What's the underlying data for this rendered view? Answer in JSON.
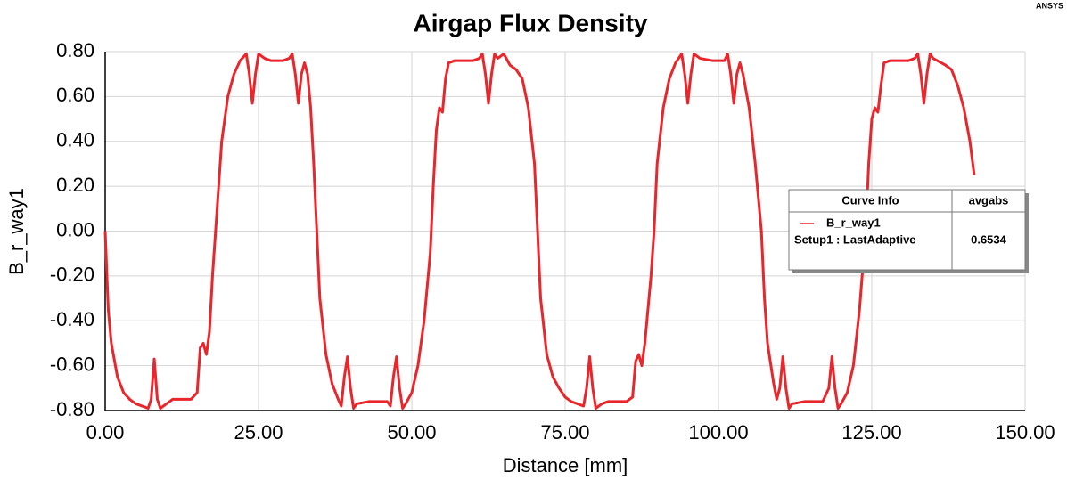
{
  "brand": "ANSYS",
  "chart_data": {
    "type": "line",
    "title": "Airgap Flux Density",
    "xlabel": "Distance [mm]",
    "ylabel": "B_r_way1",
    "xlim": [
      0,
      150
    ],
    "ylim": [
      -0.8,
      0.8
    ],
    "xticks": [
      {
        "value": 0,
        "label": "0.00"
      },
      {
        "value": 25,
        "label": "25.00"
      },
      {
        "value": 50,
        "label": "50.00"
      },
      {
        "value": 75,
        "label": "75.00"
      },
      {
        "value": 100,
        "label": "100.00"
      },
      {
        "value": 125,
        "label": "125.00"
      },
      {
        "value": 150,
        "label": "150.00"
      }
    ],
    "yticks": [
      {
        "value": -0.8,
        "label": "-0.80"
      },
      {
        "value": -0.6,
        "label": "-0.60"
      },
      {
        "value": -0.4,
        "label": "-0.40"
      },
      {
        "value": -0.2,
        "label": "-0.20"
      },
      {
        "value": 0,
        "label": "0.00"
      },
      {
        "value": 0.2,
        "label": "0.20"
      },
      {
        "value": 0.4,
        "label": "0.40"
      },
      {
        "value": 0.6,
        "label": "0.60"
      },
      {
        "value": 0.8,
        "label": "0.80"
      }
    ],
    "grid": true,
    "legend": {
      "header": [
        "Curve Info",
        "avgabs"
      ],
      "setup": "Setup1 : LastAdaptive",
      "value": 0.6534
    },
    "x": [
      0,
      0.5,
      1,
      2,
      3,
      4,
      5,
      6,
      7,
      7.5,
      8,
      8.5,
      9,
      10,
      11,
      12,
      14,
      15,
      15.5,
      16,
      16.5,
      17,
      17.5,
      18,
      18.5,
      19,
      20,
      21,
      22,
      23,
      23.5,
      24,
      24.5,
      25,
      26,
      27,
      29,
      30,
      30.5,
      31,
      31.5,
      32,
      32.5,
      33,
      33.5,
      34,
      34.5,
      35,
      36,
      37,
      38,
      38.5,
      39,
      39.5,
      40,
      40.5,
      41,
      43,
      46,
      46.5,
      47,
      47.5,
      48,
      48.5,
      49,
      50,
      51,
      52,
      53,
      53.5,
      54,
      54.5,
      55,
      55.5,
      56,
      57,
      60,
      61,
      61.5,
      62,
      62.5,
      63,
      63.5,
      64,
      65,
      66,
      67,
      68,
      69,
      70,
      70.5,
      71,
      72,
      73,
      74,
      75,
      76,
      77,
      78,
      78.5,
      79,
      79.5,
      80,
      81,
      82,
      85,
      86,
      86.5,
      87,
      87.5,
      88,
      89,
      89.5,
      90,
      91,
      92,
      93,
      94,
      94.5,
      95,
      95.5,
      96,
      97,
      99,
      101,
      101.5,
      102,
      102.5,
      103,
      103.5,
      104,
      105,
      106,
      107,
      107.5,
      108,
      109,
      109.5,
      110,
      110.5,
      111,
      111.5,
      112,
      114,
      117,
      118,
      118.5,
      119,
      119.5,
      120,
      121,
      122,
      123,
      124,
      124.5,
      125,
      125.5,
      126,
      126.5,
      127,
      128,
      131,
      132,
      132.5,
      133,
      133.5,
      134,
      134.5,
      135,
      137,
      138,
      139,
      140,
      141,
      141.7
    ],
    "series": [
      {
        "name": "B_r_way1",
        "color": "#e8262b",
        "values": [
          0,
          -0.35,
          -0.5,
          -0.65,
          -0.72,
          -0.75,
          -0.77,
          -0.78,
          -0.79,
          -0.75,
          -0.57,
          -0.75,
          -0.79,
          -0.77,
          -0.75,
          -0.75,
          -0.75,
          -0.72,
          -0.52,
          -0.5,
          -0.55,
          -0.45,
          -0.2,
          0,
          0.2,
          0.4,
          0.6,
          0.7,
          0.76,
          0.79,
          0.7,
          0.57,
          0.7,
          0.79,
          0.77,
          0.76,
          0.76,
          0.77,
          0.79,
          0.7,
          0.57,
          0.7,
          0.75,
          0.7,
          0.55,
          0.3,
          0,
          -0.3,
          -0.55,
          -0.68,
          -0.75,
          -0.78,
          -0.65,
          -0.56,
          -0.7,
          -0.79,
          -0.77,
          -0.76,
          -0.76,
          -0.78,
          -0.65,
          -0.56,
          -0.7,
          -0.79,
          -0.77,
          -0.72,
          -0.6,
          -0.4,
          -0.1,
          0.2,
          0.45,
          0.55,
          0.53,
          0.68,
          0.75,
          0.76,
          0.76,
          0.77,
          0.79,
          0.7,
          0.57,
          0.7,
          0.79,
          0.77,
          0.79,
          0.74,
          0.72,
          0.68,
          0.55,
          0.3,
          0,
          -0.3,
          -0.55,
          -0.65,
          -0.7,
          -0.74,
          -0.76,
          -0.77,
          -0.78,
          -0.7,
          -0.56,
          -0.7,
          -0.79,
          -0.77,
          -0.76,
          -0.76,
          -0.74,
          -0.58,
          -0.55,
          -0.6,
          -0.5,
          -0.2,
          0,
          0.3,
          0.55,
          0.68,
          0.75,
          0.79,
          0.7,
          0.57,
          0.7,
          0.79,
          0.77,
          0.76,
          0.76,
          0.79,
          0.7,
          0.57,
          0.7,
          0.75,
          0.7,
          0.55,
          0.3,
          0,
          -0.3,
          -0.5,
          -0.68,
          -0.75,
          -0.7,
          -0.56,
          -0.7,
          -0.79,
          -0.77,
          -0.76,
          -0.76,
          -0.7,
          -0.56,
          -0.7,
          -0.79,
          -0.77,
          -0.72,
          -0.6,
          -0.35,
          0,
          0.3,
          0.5,
          0.55,
          0.53,
          0.65,
          0.75,
          0.76,
          0.76,
          0.77,
          0.79,
          0.7,
          0.57,
          0.7,
          0.79,
          0.77,
          0.74,
          0.72,
          0.65,
          0.55,
          0.4,
          0.25
        ]
      }
    ]
  }
}
